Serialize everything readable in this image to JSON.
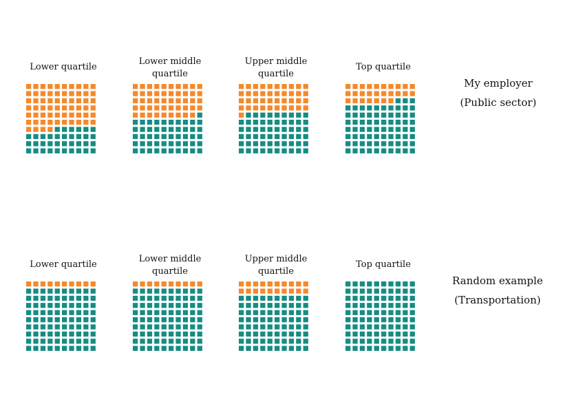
{
  "colors": {
    "orange": "#F5892B",
    "teal": "#168C84"
  },
  "chart_data": {
    "type": "waffle",
    "grid": {
      "columns": 10,
      "rows": 10
    },
    "panels": [
      {
        "label_line1": "My employer",
        "label_line2": "(Public sector)",
        "quartiles": [
          {
            "title": [
              "Lower quartile"
            ],
            "orange_squares": 64,
            "teal_squares": 36
          },
          {
            "title": [
              "Lower middle",
              "quartile"
            ],
            "orange_squares": 49,
            "teal_squares": 51
          },
          {
            "title": [
              "Upper middle",
              "quartile"
            ],
            "orange_squares": 41,
            "teal_squares": 59
          },
          {
            "title": [
              "Top quartile"
            ],
            "orange_squares": 27,
            "teal_squares": 73
          }
        ]
      },
      {
        "label_line1": "Random example",
        "label_line2": "(Transportation)",
        "quartiles": [
          {
            "title": [
              "Lower quartile"
            ],
            "orange_squares": 10,
            "teal_squares": 90
          },
          {
            "title": [
              "Lower middle",
              "quartile"
            ],
            "orange_squares": 10,
            "teal_squares": 90
          },
          {
            "title": [
              "Upper middle",
              "quartile"
            ],
            "orange_squares": 20,
            "teal_squares": 80
          },
          {
            "title": [
              "Top quartile"
            ],
            "orange_squares": 0,
            "teal_squares": 100
          }
        ]
      }
    ]
  }
}
